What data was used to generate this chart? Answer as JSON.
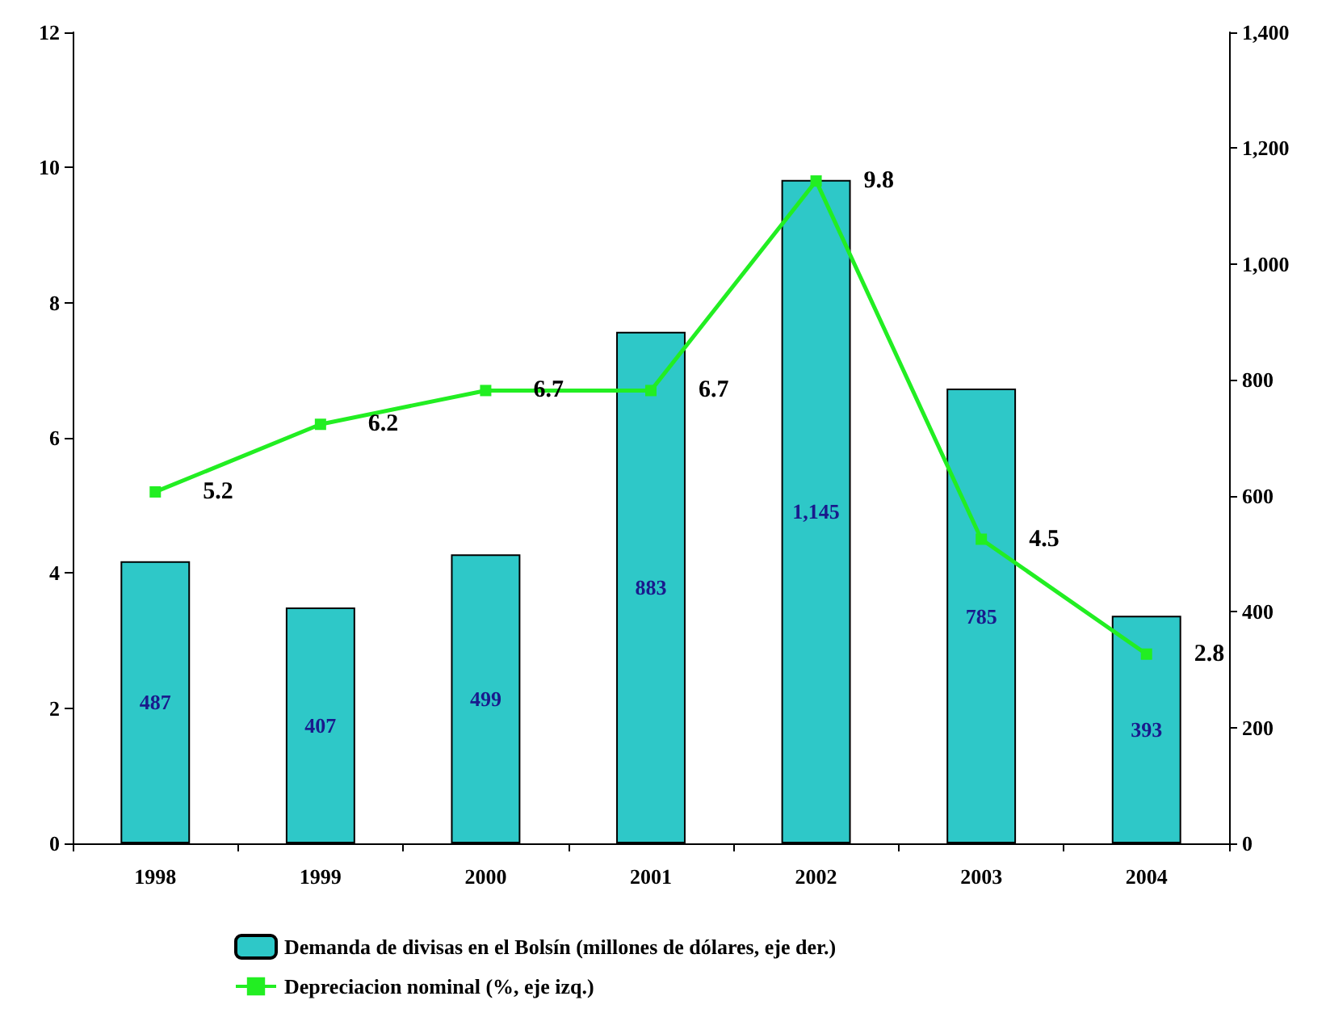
{
  "chart_data": {
    "type": "bar",
    "categories": [
      "1998",
      "1999",
      "2000",
      "2001",
      "2002",
      "2003",
      "2004"
    ],
    "series": [
      {
        "name": "Demanda de divisas en el Bolsín (millones de dólares, eje der.)",
        "axis": "y2",
        "color": "#2ec8c8",
        "values": [
          487,
          407,
          499,
          883,
          1145,
          785,
          393
        ],
        "value_labels": [
          "487",
          "407",
          "499",
          "883",
          "1,145",
          "785",
          "393"
        ]
      },
      {
        "name": "Depreciacion nominal (%, eje izq.)",
        "type": "line",
        "color": "#22ee22",
        "values": [
          5.2,
          6.2,
          6.7,
          6.7,
          9.8,
          4.5,
          2.8
        ],
        "value_labels": [
          "5.2",
          "6.2",
          "6.7",
          "6.7",
          "9.8",
          "4.5",
          "2.8"
        ]
      }
    ],
    "ylim": [
      0,
      12
    ],
    "yticks": [
      0,
      2,
      4,
      6,
      8,
      10,
      12
    ],
    "y2lim": [
      0,
      1400
    ],
    "y2ticks": [
      0,
      200,
      400,
      600,
      800,
      {
        "value": 1000,
        "label": "1,000"
      },
      {
        "value": 1200,
        "label": "1,200"
      },
      {
        "value": 1400,
        "label": "1,400"
      }
    ],
    "legend": "bottom",
    "grid": false,
    "marker": "square",
    "line_style": "solid"
  }
}
